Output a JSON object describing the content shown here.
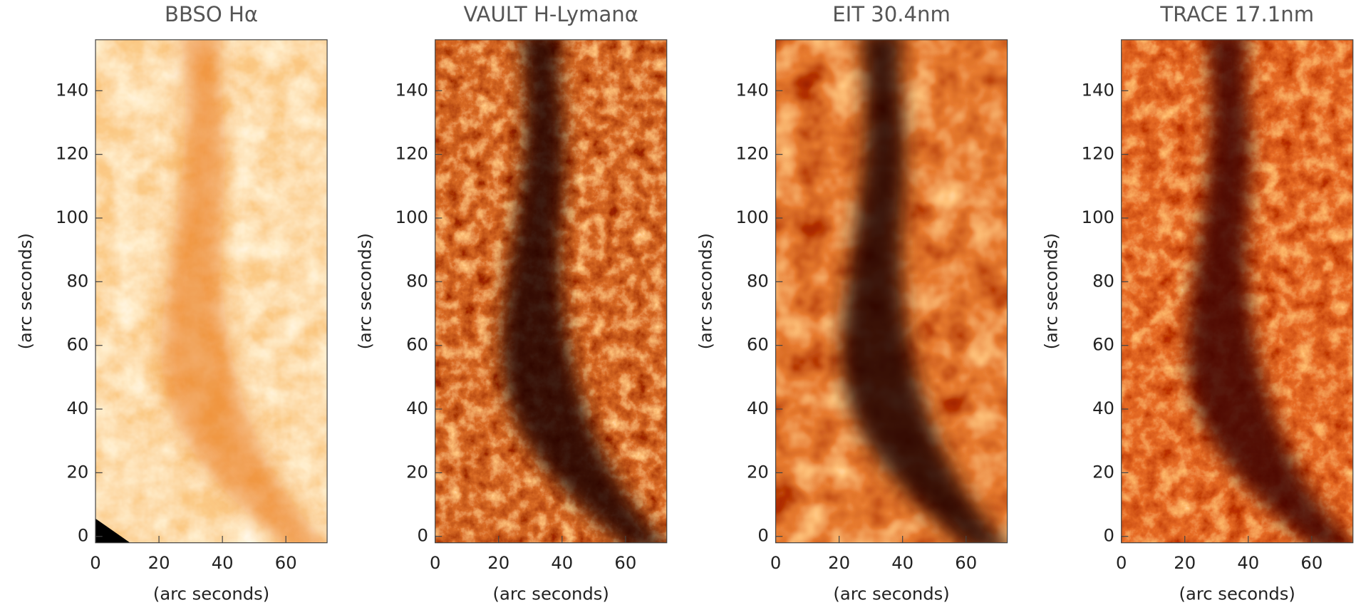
{
  "chart_data": [
    {
      "type": "image",
      "title": "BBSO Hα",
      "xlabel": "(arc seconds)",
      "ylabel": "(arc seconds)",
      "xlim": [
        0,
        73
      ],
      "ylim": [
        -2,
        156
      ],
      "xticks": [
        0,
        20,
        40,
        60
      ],
      "yticks": [
        0,
        20,
        40,
        60,
        80,
        100,
        120,
        140
      ]
    },
    {
      "type": "image",
      "title": "VAULT H-Lymanα",
      "xlabel": "(arc seconds)",
      "ylabel": "(arc seconds)",
      "xlim": [
        0,
        73
      ],
      "ylim": [
        -2,
        156
      ],
      "xticks": [
        0,
        20,
        40,
        60
      ],
      "yticks": [
        0,
        20,
        40,
        60,
        80,
        100,
        120,
        140
      ]
    },
    {
      "type": "image",
      "title": "EIT 30.4nm",
      "xlabel": "(arc seconds)",
      "ylabel": "(arc seconds)",
      "xlim": [
        0,
        73
      ],
      "ylim": [
        -2,
        156
      ],
      "xticks": [
        0,
        20,
        40,
        60
      ],
      "yticks": [
        0,
        20,
        40,
        60,
        80,
        100,
        120,
        140
      ]
    },
    {
      "type": "image",
      "title": "TRACE 17.1nm",
      "xlabel": "(arc seconds)",
      "ylabel": "(arc seconds)",
      "xlim": [
        0,
        73
      ],
      "ylim": [
        -2,
        156
      ],
      "xticks": [
        0,
        20,
        40,
        60
      ],
      "yticks": [
        0,
        20,
        40,
        60,
        80,
        100,
        120,
        140
      ]
    }
  ]
}
